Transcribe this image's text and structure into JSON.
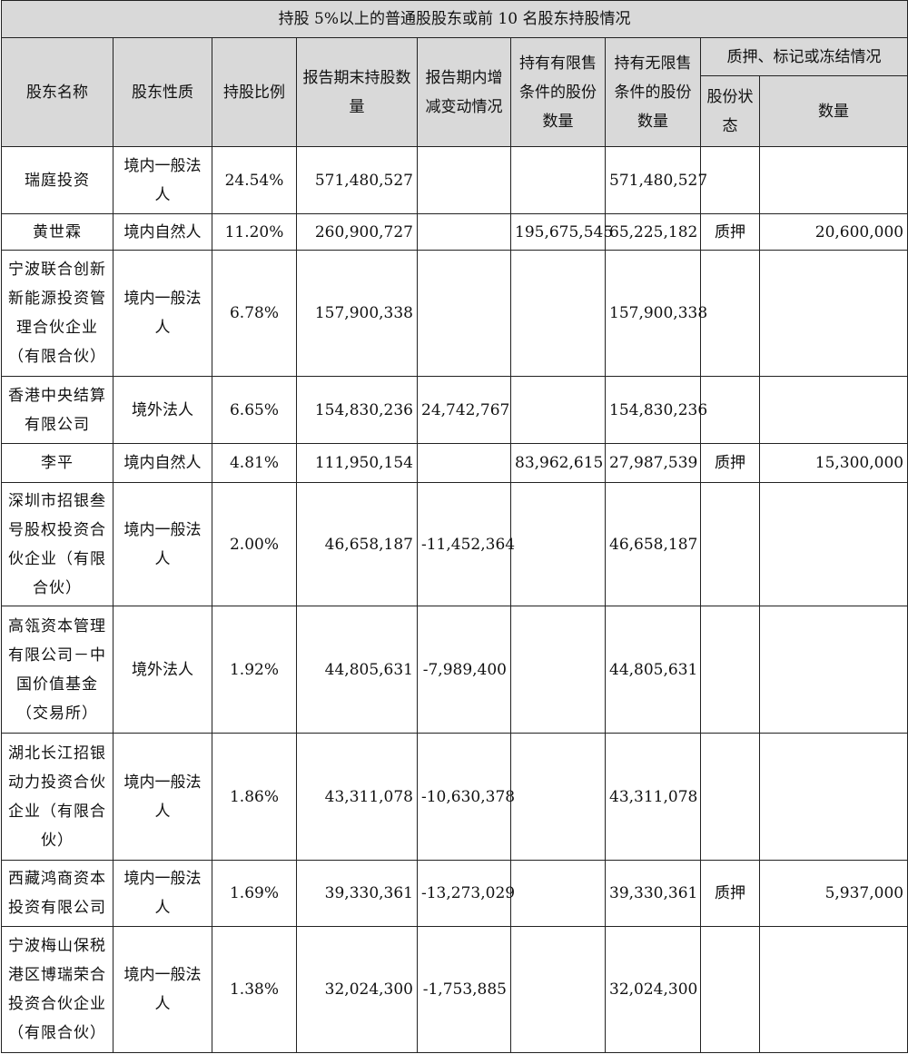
{
  "title": "持股 5%以上的普通股股东或前 10 名股东持股情况",
  "headers": {
    "name": "股东名称",
    "nature": "股东性质",
    "ratio": "持股比例",
    "end_qty": "报告期末持股数量",
    "change": "报告期内增减变动情况",
    "restricted": "持有有限售条件的股份数量",
    "unrestricted": "持有无限售条件的股份数量",
    "pledge_group": "质押、标记或冻结情况",
    "pledge_status": "股份状态",
    "pledge_qty": "数量"
  },
  "rows": [
    {
      "name": "瑞庭投资",
      "nature": "境内一般法人",
      "ratio": "24.54%",
      "end_qty": "571,480,527",
      "change": "",
      "restricted": "",
      "unrestricted": "571,480,527",
      "status": "",
      "pledge_qty": ""
    },
    {
      "name": "黄世霖",
      "nature": "境内自然人",
      "ratio": "11.20%",
      "end_qty": "260,900,727",
      "change": "",
      "restricted": "195,675,545",
      "unrestricted": "65,225,182",
      "status": "质押",
      "pledge_qty": "20,600,000"
    },
    {
      "name": "宁波联合创新新能源投资管理合伙企业（有限合伙）",
      "nature": "境内一般法人",
      "ratio": "6.78%",
      "end_qty": "157,900,338",
      "change": "",
      "restricted": "",
      "unrestricted": "157,900,338",
      "status": "",
      "pledge_qty": ""
    },
    {
      "name": "香港中央结算有限公司",
      "nature": "境外法人",
      "ratio": "6.65%",
      "end_qty": "154,830,236",
      "change": "24,742,767",
      "restricted": "",
      "unrestricted": "154,830,236",
      "status": "",
      "pledge_qty": ""
    },
    {
      "name": "李平",
      "nature": "境内自然人",
      "ratio": "4.81%",
      "end_qty": "111,950,154",
      "change": "",
      "restricted": "83,962,615",
      "unrestricted": "27,987,539",
      "status": "质押",
      "pledge_qty": "15,300,000"
    },
    {
      "name": "深圳市招银叁号股权投资合伙企业（有限合伙）",
      "nature": "境内一般法人",
      "ratio": "2.00%",
      "end_qty": "46,658,187",
      "change": "-11,452,364",
      "restricted": "",
      "unrestricted": "46,658,187",
      "status": "",
      "pledge_qty": ""
    },
    {
      "name": "高瓴资本管理有限公司－中国价值基金（交易所）",
      "nature": "境外法人",
      "ratio": "1.92%",
      "end_qty": "44,805,631",
      "change": "-7,989,400",
      "restricted": "",
      "unrestricted": "44,805,631",
      "status": "",
      "pledge_qty": ""
    },
    {
      "name": "湖北长江招银动力投资合伙企业（有限合伙）",
      "nature": "境内一般法人",
      "ratio": "1.86%",
      "end_qty": "43,311,078",
      "change": "-10,630,378",
      "restricted": "",
      "unrestricted": "43,311,078",
      "status": "",
      "pledge_qty": ""
    },
    {
      "name": "西藏鸿商资本投资有限公司",
      "nature": "境内一般法人",
      "ratio": "1.69%",
      "end_qty": "39,330,361",
      "change": "-13,273,029",
      "restricted": "",
      "unrestricted": "39,330,361",
      "status": "质押",
      "pledge_qty": "5,937,000"
    },
    {
      "name": "宁波梅山保税港区博瑞荣合投资合伙企业（有限合伙）",
      "nature": "境内一般法人",
      "ratio": "1.38%",
      "end_qty": "32,024,300",
      "change": "-1,753,885",
      "restricted": "",
      "unrestricted": "32,024,300",
      "status": "",
      "pledge_qty": ""
    }
  ]
}
